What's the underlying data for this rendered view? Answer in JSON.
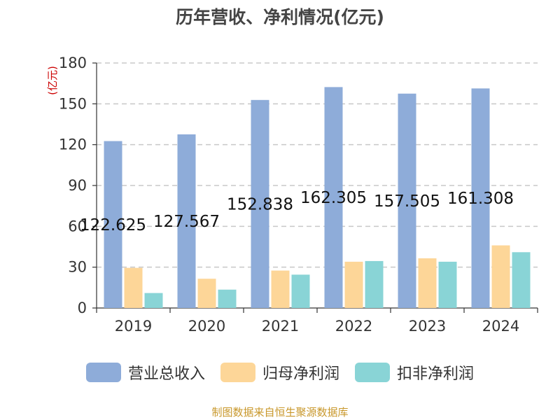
{
  "chart_data": {
    "type": "bar",
    "title": "历年营收、净利情况(亿元)",
    "unit_label": "(亿元)",
    "categories": [
      "2019",
      "2020",
      "2021",
      "2022",
      "2023",
      "2024"
    ],
    "ylim": [
      0,
      180
    ],
    "yticks": [
      0,
      30,
      60,
      90,
      120,
      150,
      180
    ],
    "grid": true,
    "legend_position": "bottom",
    "series": [
      {
        "name": "营业总收入",
        "color": "#8eacd9",
        "values": [
          122.625,
          127.567,
          152.838,
          162.305,
          157.505,
          161.308
        ],
        "labels": [
          "122.625",
          "127.567",
          "152.838",
          "162.305",
          "157.505",
          "161.308"
        ]
      },
      {
        "name": "归母净利润",
        "color": "#fdd698",
        "values": [
          29.5,
          21.5,
          27.5,
          34,
          36.5,
          46
        ]
      },
      {
        "name": "扣非净利润",
        "color": "#89d4d6",
        "values": [
          11,
          13.5,
          24.5,
          34.5,
          34,
          41
        ]
      }
    ]
  },
  "source_note": "制图数据来自恒生聚源数据库"
}
